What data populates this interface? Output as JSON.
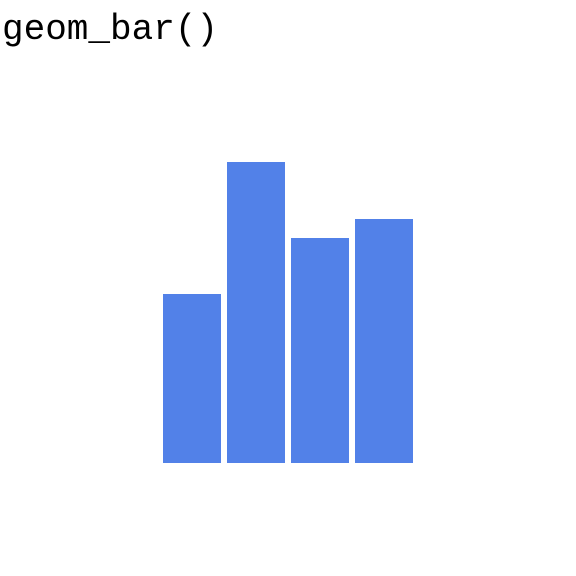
{
  "chart_data": {
    "type": "bar",
    "title": "geom_bar()",
    "categories": [
      "",
      "",
      "",
      ""
    ],
    "values": [
      169,
      301,
      225,
      244
    ],
    "ylim": [
      0,
      301
    ],
    "grid": false,
    "bar_color": "#5281e8"
  }
}
